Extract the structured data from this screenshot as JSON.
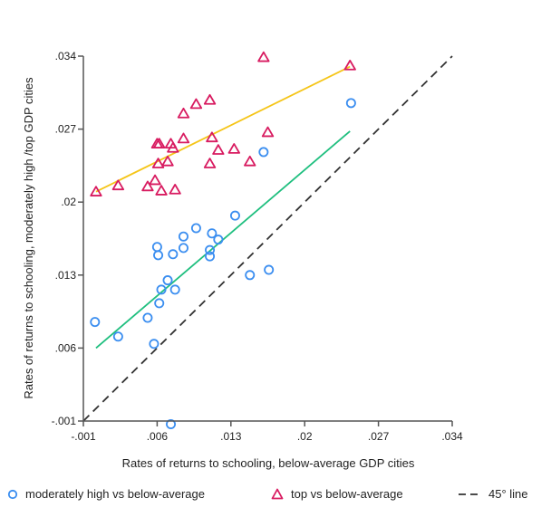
{
  "chart_data": {
    "type": "scatter",
    "title": "",
    "xlabel": "Rates of returns to schooling, below-average GDP cities",
    "ylabel": "Rates of returns to schooling, moderately high /top GDP cities",
    "xlim": [
      -0.001,
      0.034
    ],
    "ylim": [
      -0.001,
      0.034
    ],
    "xticks": [
      -0.001,
      0.006,
      0.013,
      0.02,
      0.027,
      0.034
    ],
    "yticks": [
      -0.001,
      0.006,
      0.013,
      0.02,
      0.027,
      0.034
    ],
    "xtick_labels": [
      "-.001",
      ".006",
      ".013",
      ".02",
      ".027",
      ".034"
    ],
    "ytick_labels": [
      "-.001",
      ".006",
      ".013",
      ".02",
      ".027",
      ".034"
    ],
    "grid": false,
    "legend_position": "bottom",
    "series": [
      {
        "name": "moderately high vs below-average",
        "marker": "circle",
        "color": "#3b8ef0",
        "points": [
          [
            0.0001,
            0.0085
          ],
          [
            0.0023,
            0.0071
          ],
          [
            0.0051,
            0.0089
          ],
          [
            0.0057,
            0.0064
          ],
          [
            0.0062,
            0.0103
          ],
          [
            0.006,
            0.0157
          ],
          [
            0.0061,
            0.0149
          ],
          [
            0.007,
            0.0125
          ],
          [
            0.0064,
            0.0116
          ],
          [
            0.0077,
            0.0116
          ],
          [
            0.0075,
            0.015
          ],
          [
            0.0085,
            0.0156
          ],
          [
            0.0085,
            0.0167
          ],
          [
            0.0097,
            0.0175
          ],
          [
            0.0112,
            0.017
          ],
          [
            0.0118,
            0.0164
          ],
          [
            0.011,
            0.0154
          ],
          [
            0.011,
            0.0148
          ],
          [
            0.0134,
            0.0187
          ],
          [
            0.0148,
            0.013
          ],
          [
            0.0166,
            0.0135
          ],
          [
            0.0161,
            0.0248
          ],
          [
            0.0244,
            0.0295
          ],
          [
            0.0073,
            -0.0013
          ]
        ]
      },
      {
        "name": "top vs below-average",
        "marker": "triangle",
        "color": "#d81b60",
        "points": [
          [
            0.0002,
            0.021
          ],
          [
            0.0023,
            0.0216
          ],
          [
            0.0051,
            0.0215
          ],
          [
            0.0058,
            0.0221
          ],
          [
            0.0064,
            0.0211
          ],
          [
            0.0077,
            0.0212
          ],
          [
            0.0061,
            0.0237
          ],
          [
            0.007,
            0.0239
          ],
          [
            0.006,
            0.0256
          ],
          [
            0.0062,
            0.0256
          ],
          [
            0.0073,
            0.0256
          ],
          [
            0.0075,
            0.0252
          ],
          [
            0.0085,
            0.0261
          ],
          [
            0.0085,
            0.0285
          ],
          [
            0.0097,
            0.0294
          ],
          [
            0.011,
            0.0298
          ],
          [
            0.0112,
            0.0262
          ],
          [
            0.0118,
            0.025
          ],
          [
            0.0133,
            0.0251
          ],
          [
            0.011,
            0.0237
          ],
          [
            0.0148,
            0.0239
          ],
          [
            0.0165,
            0.0267
          ],
          [
            0.0161,
            0.0339
          ],
          [
            0.0243,
            0.0331
          ]
        ]
      }
    ],
    "fit_lines": [
      {
        "name": "top vs below-average fit",
        "color": "#f5c518",
        "x": [
          0.0002,
          0.0243
        ],
        "y": [
          0.021,
          0.033
        ]
      },
      {
        "name": "moderately high vs below-average fit",
        "color": "#1fbf7f",
        "x": [
          0.0002,
          0.0243
        ],
        "y": [
          0.006,
          0.0268
        ]
      }
    ],
    "reference_line": {
      "name": "45° line",
      "color": "#333333",
      "style": "dashed",
      "x": [
        -0.001,
        0.034
      ],
      "y": [
        -0.001,
        0.034
      ]
    }
  },
  "legend": {
    "items": [
      {
        "label": "moderately high vs below-average",
        "icon": "circle-marker-icon"
      },
      {
        "label": "top vs below-average",
        "icon": "triangle-marker-icon"
      },
      {
        "label": "45° line",
        "icon": "dashed-line-icon"
      }
    ]
  }
}
